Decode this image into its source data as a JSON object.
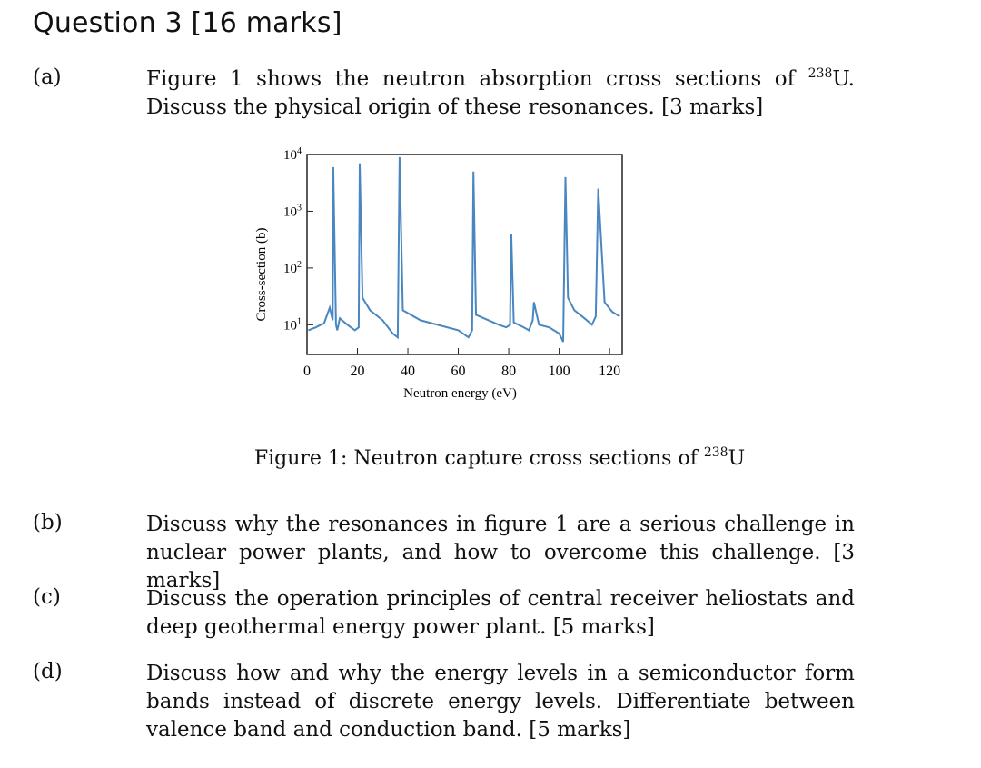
{
  "heading": "Question 3 [16 marks]",
  "parts": [
    {
      "label": "(a)",
      "text_before": "Figure 1 shows the neutron absorption cross sections of ",
      "sup": "238",
      "text_after": "U. Discuss the physical origin of these resonances. [3 marks]"
    },
    {
      "label": "(b)",
      "text": "Discuss why the resonances in figure 1 are a serious challenge in nuclear power plants, and how to overcome this challenge. [3 marks]"
    },
    {
      "label": "(c)",
      "text": "Discuss the operation principles of central receiver heliostats and deep geothermal energy power plant. [5 marks]"
    },
    {
      "label": "(d)",
      "text": "Discuss how and why the energy levels in a semiconductor form bands instead of discrete energy levels. Differentiate between valence band and conduction band. [5 marks]"
    }
  ],
  "figure": {
    "caption_before": "Figure 1: Neutron capture cross sections of ",
    "caption_sup": "238",
    "caption_after": "U"
  },
  "chart_data": {
    "type": "line",
    "xlabel": "Neutron energy (eV)",
    "ylabel": "Cross-section (b)",
    "xlim": [
      0,
      125
    ],
    "ylim": [
      3,
      10000
    ],
    "yscale": "log",
    "x_ticks": [
      0,
      20,
      40,
      60,
      80,
      100,
      120
    ],
    "y_ticks": [
      {
        "base": "10",
        "exp": "1",
        "value": 10
      },
      {
        "base": "10",
        "exp": "2",
        "value": 100
      },
      {
        "base": "10",
        "exp": "3",
        "value": 1000
      },
      {
        "base": "10",
        "exp": "4",
        "value": 10000
      }
    ],
    "line_color": "#4a86c0",
    "series": [
      {
        "x": [
          0.5,
          3.5,
          5.5,
          6.7,
          7.2,
          9,
          10.2,
          10.4,
          11.5,
          12,
          13,
          16,
          19,
          20.5,
          20.9,
          22,
          25,
          30,
          34,
          36,
          36.7,
          38,
          45,
          60,
          64,
          65.5,
          66,
          67,
          72,
          76,
          79,
          80.5,
          81,
          82,
          86,
          88,
          89.5,
          90,
          92,
          96,
          100,
          101.6,
          102.5,
          103.5,
          106,
          110,
          113,
          114.5,
          115.5,
          118,
          121,
          124
        ],
        "y": [
          8,
          9,
          10,
          10.5,
          12,
          20,
          12,
          6000,
          10,
          8,
          13,
          10,
          8,
          9,
          7000,
          30,
          18,
          12,
          7,
          6,
          9000,
          18,
          12,
          8,
          6,
          8,
          5000,
          15,
          12,
          10,
          9,
          10,
          400,
          11,
          9,
          8,
          12,
          25,
          10,
          9,
          7,
          5,
          4000,
          30,
          18,
          13,
          10,
          14,
          2500,
          25,
          17,
          14
        ]
      }
    ]
  }
}
